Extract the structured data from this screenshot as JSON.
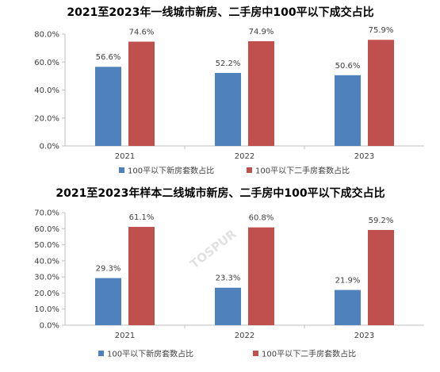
{
  "colors": {
    "new": "#4f81bd",
    "second": "#c0504d",
    "axis": "#bfbfbf"
  },
  "watermark": "TOSPUR",
  "chart_data": [
    {
      "type": "bar",
      "title": "2021至2023年一线城市新房、二手房中100平以下成交占比",
      "categories": [
        "2021",
        "2022",
        "2023"
      ],
      "series": [
        {
          "name": "100平以下新房套数占比",
          "values": [
            56.6,
            52.2,
            50.6
          ],
          "labels": [
            "56.6%",
            "52.2%",
            "50.6%"
          ]
        },
        {
          "name": "100平以下二手房套数占比",
          "values": [
            74.6,
            74.9,
            75.9
          ],
          "labels": [
            "74.6%",
            "74.9%",
            "75.9%"
          ]
        }
      ],
      "ylim": [
        0,
        80
      ],
      "yticks": [
        "0.0%",
        "20.0%",
        "40.0%",
        "60.0%",
        "80.0%"
      ],
      "xlabel": "",
      "ylabel": "",
      "grid": false,
      "legend": "bottom"
    },
    {
      "type": "bar",
      "title": "2021至2023年样本二线城市新房、二手房中100平以下成交占比",
      "categories": [
        "2021",
        "2022",
        "2023"
      ],
      "series": [
        {
          "name": "100平以下新房套数占比",
          "values": [
            29.3,
            23.3,
            21.9
          ],
          "labels": [
            "29.3%",
            "23.3%",
            "21.9%"
          ]
        },
        {
          "name": "100平以下二手房套数占比",
          "values": [
            61.1,
            60.8,
            59.2
          ],
          "labels": [
            "61.1%",
            "60.8%",
            "59.2%"
          ]
        }
      ],
      "ylim": [
        0,
        70
      ],
      "yticks": [
        "0.0%",
        "10.0%",
        "20.0%",
        "30.0%",
        "40.0%",
        "50.0%",
        "60.0%",
        "70.0%"
      ],
      "xlabel": "",
      "ylabel": "",
      "grid": false,
      "legend": "bottom"
    }
  ]
}
